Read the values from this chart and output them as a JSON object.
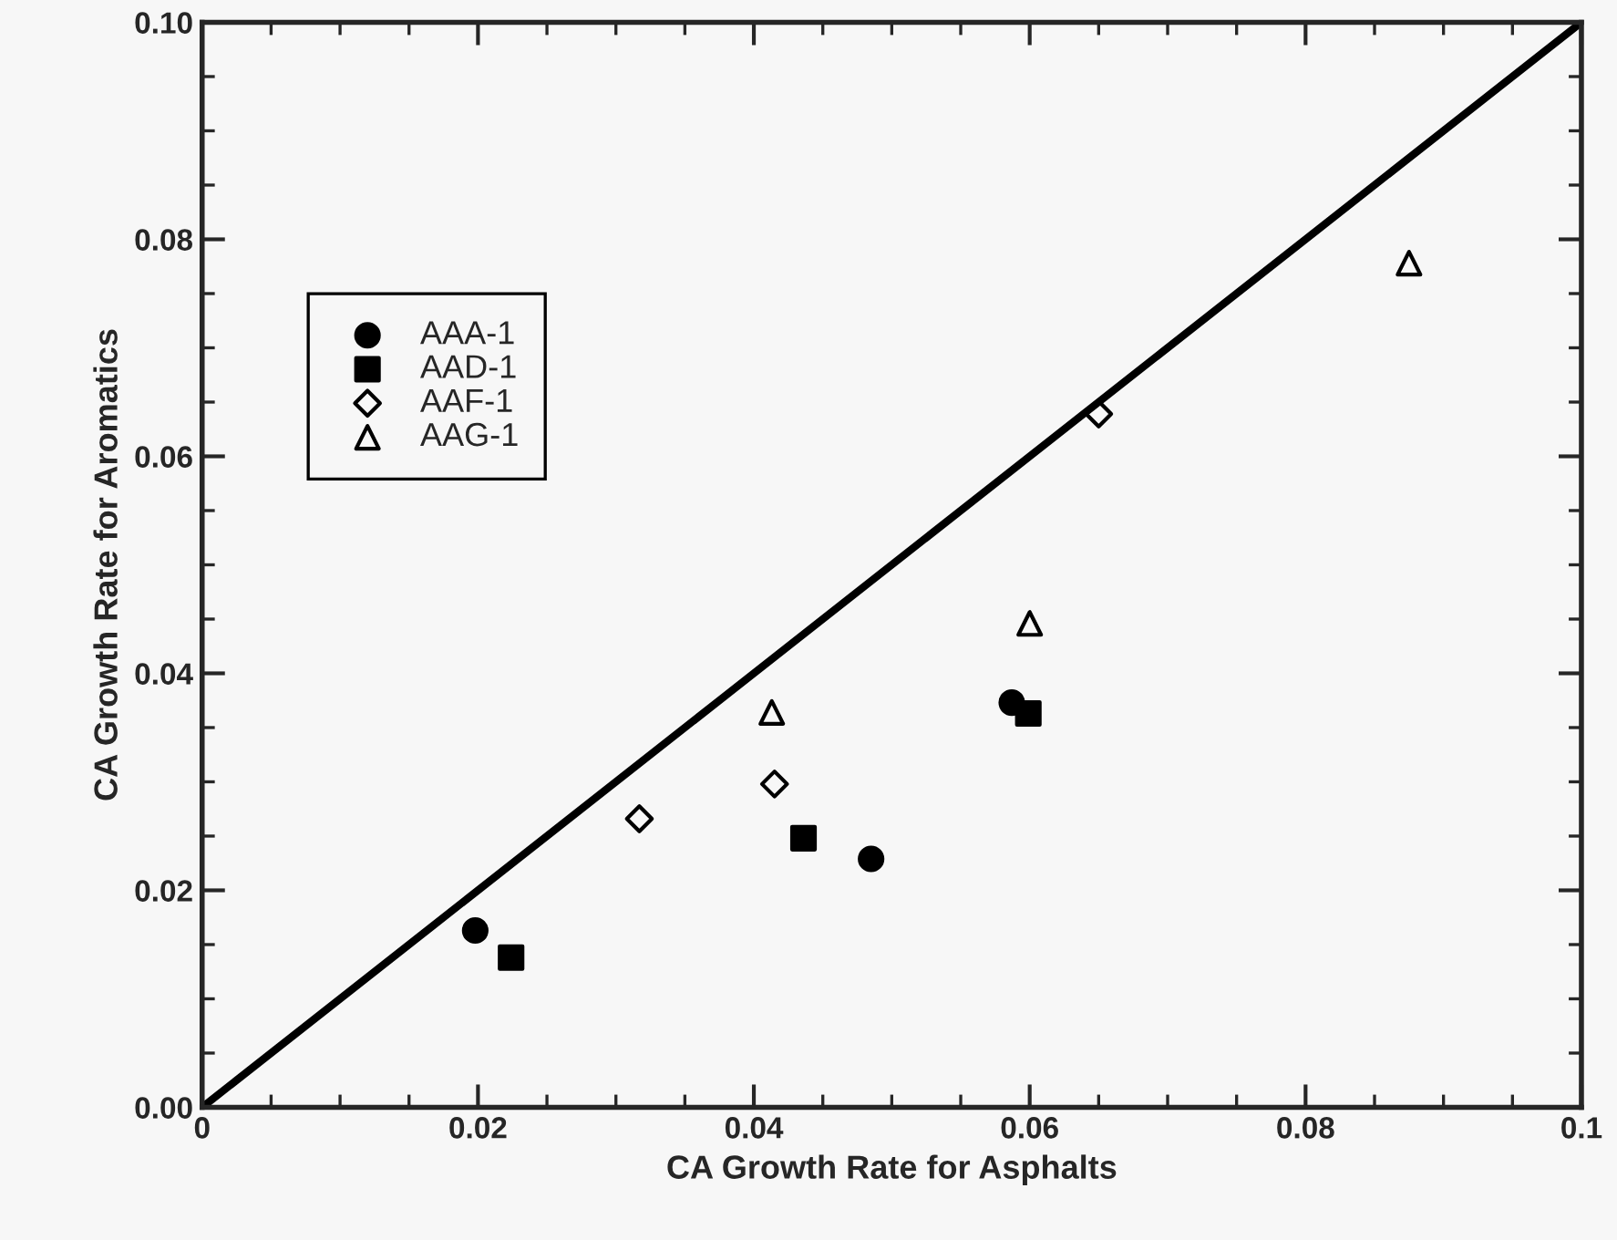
{
  "chart_data": {
    "type": "scatter",
    "xlabel": "CA Growth Rate for Asphalts",
    "ylabel": "CA Growth Rate for Aromatics",
    "xlim": [
      0,
      0.1
    ],
    "ylim": [
      0,
      0.1
    ],
    "xticks": [
      {
        "value": 0,
        "label": "0"
      },
      0.02,
      0.04,
      0.06,
      0.08,
      0.1
    ],
    "yticks": [
      {
        "value": 0,
        "label": "0.00"
      },
      {
        "value": 0.02,
        "label": "0.02"
      },
      {
        "value": 0.04,
        "label": "0.04"
      },
      {
        "value": 0.06,
        "label": "0.06"
      },
      {
        "value": 0.08,
        "label": "0.08"
      },
      {
        "value": 0.1,
        "label": "0.10"
      }
    ],
    "grid": false,
    "legend": "top left",
    "series": [
      {
        "name": "AAA-1",
        "color": "#000000",
        "marker": "circle",
        "x": [
          0.0198,
          0.0485,
          0.0587
        ],
        "values": [
          0.0163,
          0.0229,
          0.0373
        ]
      },
      {
        "name": "AAD-1",
        "color": "#000000",
        "marker": "square",
        "x": [
          0.0224,
          0.0436,
          0.0599
        ],
        "values": [
          0.0138,
          0.0248,
          0.0363
        ]
      },
      {
        "name": "AAF-1",
        "color": "#000000",
        "marker": "diamond",
        "x": [
          0.0317,
          0.0415,
          0.065
        ],
        "values": [
          0.0266,
          0.0298,
          0.0639
        ]
      },
      {
        "name": "AAG-1",
        "color": "#000000",
        "marker": "triangle",
        "x": [
          0.0413,
          0.06,
          0.0875
        ],
        "values": [
          0.0364,
          0.0446,
          0.0778
        ]
      },
      {
        "type": "line",
        "color": "#000000",
        "x": [
          0,
          0.1
        ],
        "values": [
          0,
          0.1
        ],
        "marker": "none",
        "line_style": "solid"
      }
    ]
  }
}
